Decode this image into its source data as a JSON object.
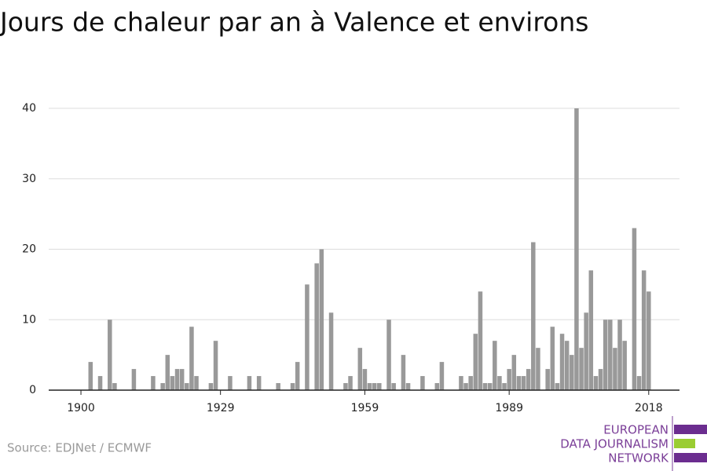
{
  "chart_data": {
    "type": "bar",
    "title": "Jours de chaleur par an à Valence et environs",
    "x": [
      1900,
      1901,
      1902,
      1903,
      1904,
      1905,
      1906,
      1907,
      1908,
      1909,
      1910,
      1911,
      1912,
      1913,
      1914,
      1915,
      1916,
      1917,
      1918,
      1919,
      1920,
      1921,
      1922,
      1923,
      1924,
      1925,
      1926,
      1927,
      1928,
      1929,
      1930,
      1931,
      1932,
      1933,
      1934,
      1935,
      1936,
      1937,
      1938,
      1939,
      1940,
      1941,
      1942,
      1943,
      1944,
      1945,
      1946,
      1947,
      1948,
      1949,
      1950,
      1951,
      1952,
      1953,
      1954,
      1955,
      1956,
      1957,
      1958,
      1959,
      1960,
      1961,
      1962,
      1963,
      1964,
      1965,
      1966,
      1967,
      1968,
      1969,
      1970,
      1971,
      1972,
      1973,
      1974,
      1975,
      1976,
      1977,
      1978,
      1979,
      1980,
      1981,
      1982,
      1983,
      1984,
      1985,
      1986,
      1987,
      1988,
      1989,
      1990,
      1991,
      1992,
      1993,
      1994,
      1995,
      1996,
      1997,
      1998,
      1999,
      2000,
      2001,
      2002,
      2003,
      2004,
      2005,
      2006,
      2007,
      2008,
      2009,
      2010,
      2011,
      2012,
      2013,
      2014,
      2015,
      2016,
      2017,
      2018
    ],
    "values": [
      0,
      0,
      4,
      0,
      2,
      0,
      10,
      1,
      0,
      0,
      0,
      3,
      0,
      0,
      0,
      2,
      0,
      1,
      5,
      2,
      3,
      3,
      1,
      9,
      2,
      0,
      0,
      1,
      7,
      0,
      0,
      2,
      0,
      0,
      0,
      2,
      0,
      2,
      0,
      0,
      0,
      1,
      0,
      0,
      1,
      4,
      0,
      15,
      0,
      18,
      20,
      0,
      11,
      0,
      0,
      1,
      2,
      0,
      6,
      3,
      1,
      1,
      1,
      0,
      10,
      1,
      0,
      5,
      1,
      0,
      0,
      2,
      0,
      0,
      1,
      4,
      0,
      0,
      0,
      2,
      1,
      2,
      8,
      14,
      1,
      1,
      7,
      2,
      1,
      3,
      5,
      2,
      2,
      3,
      21,
      6,
      0,
      3,
      9,
      1,
      8,
      7,
      5,
      40,
      6,
      11,
      17,
      2,
      3,
      10,
      10,
      6,
      10,
      7,
      0,
      23,
      2,
      17,
      14
    ],
    "color": "#999999",
    "xlim": [
      1893.3,
      2024.4
    ],
    "xticks": [
      1900,
      1929,
      1959,
      1989,
      2018
    ],
    "ylim": [
      0,
      40
    ],
    "yticks": [
      0,
      10,
      20,
      30,
      40
    ],
    "grid": true
  },
  "source": "Source: EDJNet / ECMWF",
  "logo": [
    "EUROPEAN",
    "DATA JOURNALISM",
    "NETWORK"
  ]
}
